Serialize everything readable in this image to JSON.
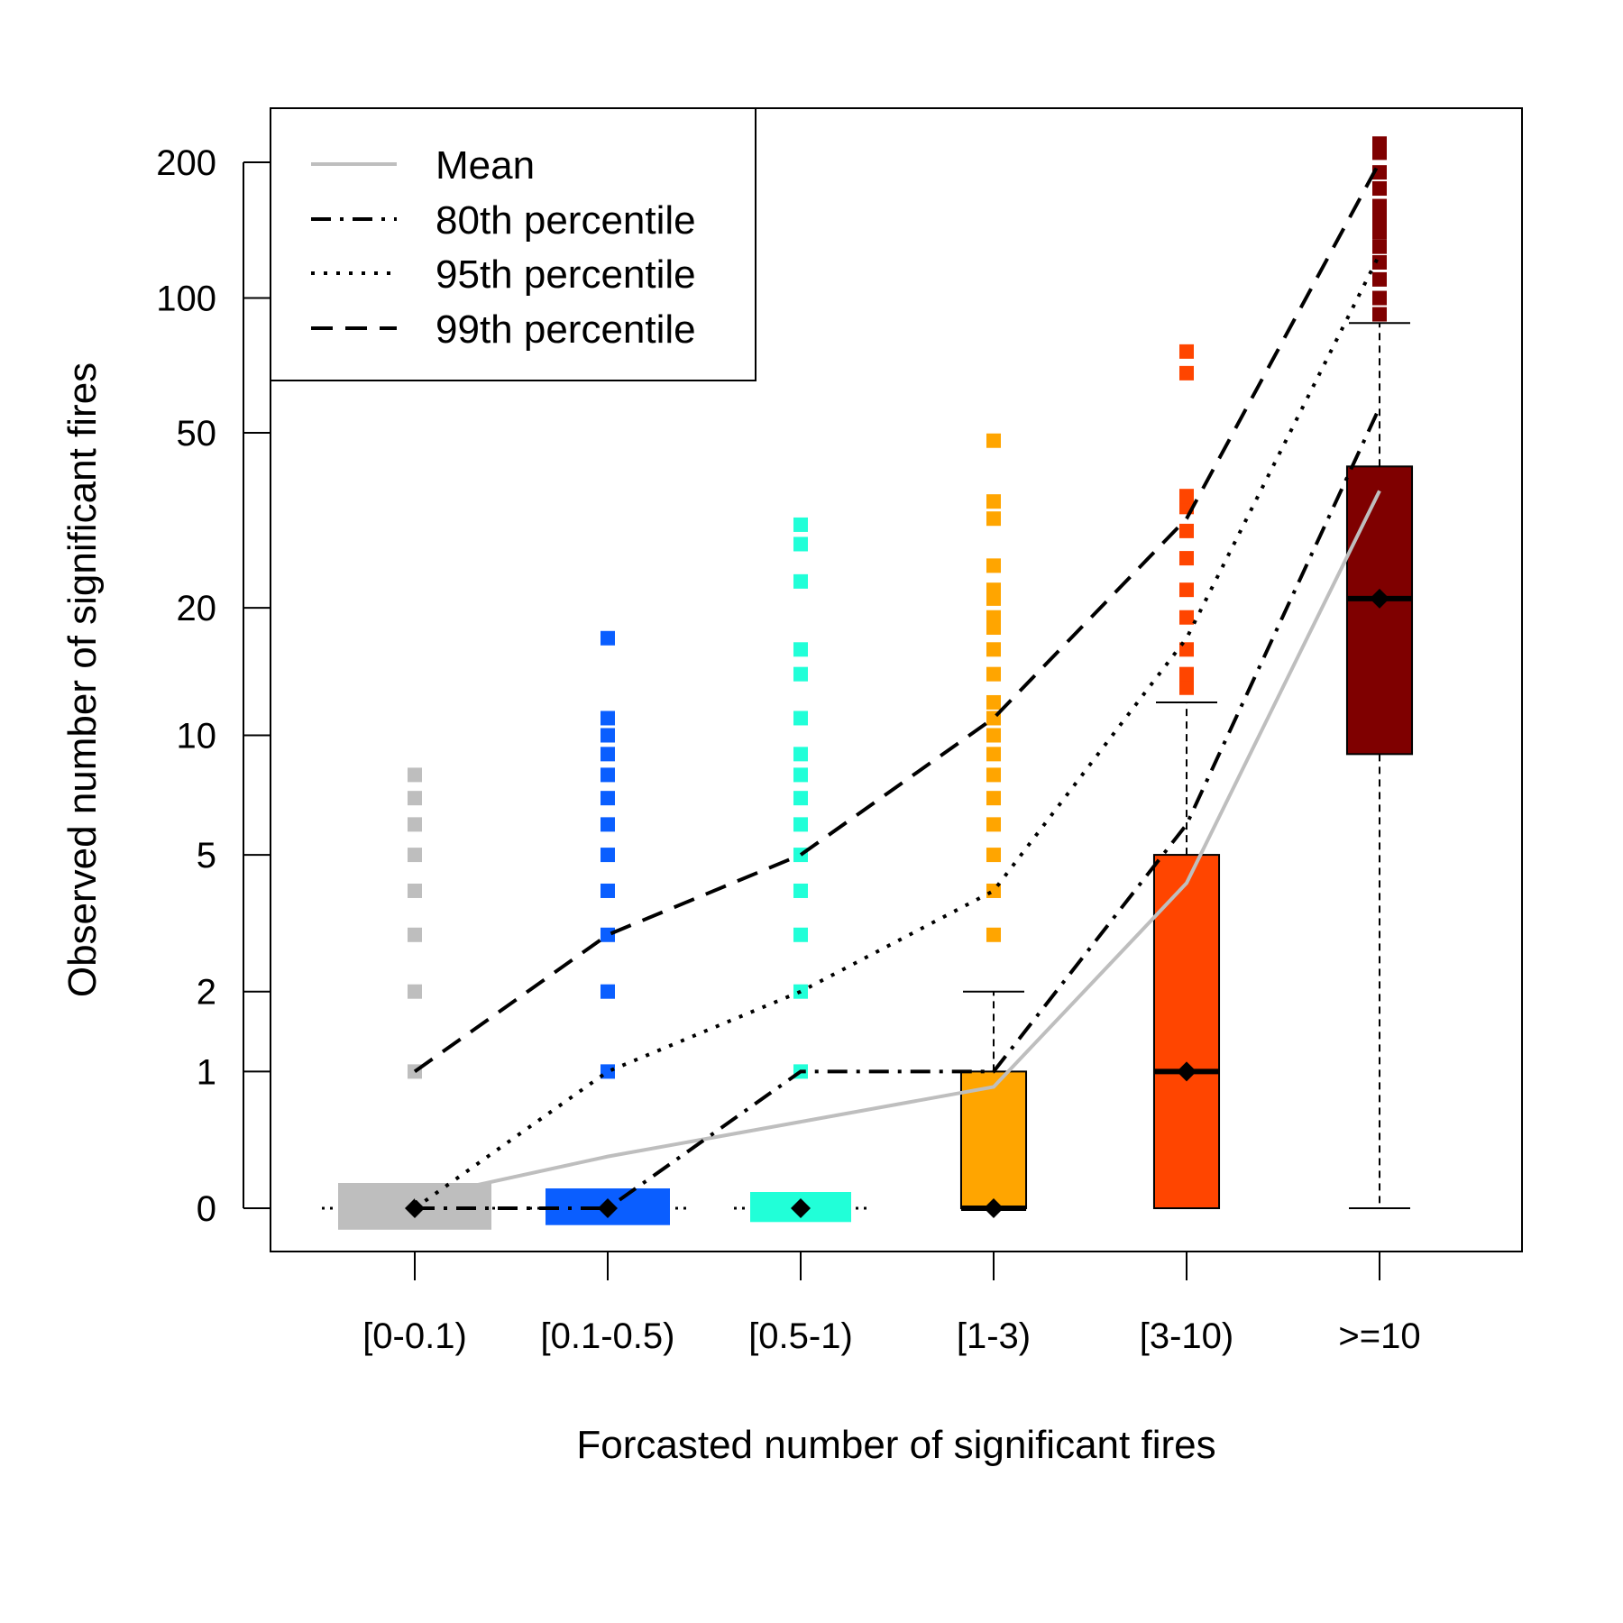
{
  "chart_data": {
    "type": "box",
    "xlabel": "Forcasted number of significant fires",
    "ylabel": "Observed number of significant fires",
    "y_scale": "log(y+1)",
    "ylim": [
      0,
      260
    ],
    "y_ticks": [
      0,
      1,
      2,
      5,
      10,
      20,
      50,
      100,
      200
    ],
    "categories": [
      "[0-0.1)",
      "[0.1-0.5)",
      "[0.5-1)",
      "[1-3)",
      "[3-10)",
      ">=10"
    ],
    "colors": [
      "#bebebe",
      "#0a5eff",
      "#21ffd8",
      "#ffa500",
      "#ff4500",
      "#7f0000"
    ],
    "boxes": [
      {
        "category": "[0-0.1)",
        "q1": 0,
        "median": 0,
        "q3": 0,
        "whisker_low": 0,
        "whisker_high": 0,
        "outliers": [
          1,
          2,
          3,
          4,
          5,
          6,
          7,
          8
        ]
      },
      {
        "category": "[0.1-0.5)",
        "q1": 0,
        "median": 0,
        "q3": 0,
        "whisker_low": 0,
        "whisker_high": 0,
        "outliers": [
          1,
          2,
          3,
          4,
          5,
          6,
          7,
          8,
          9,
          10,
          11,
          17
        ]
      },
      {
        "category": "[0.5-1)",
        "q1": 0,
        "median": 0,
        "q3": 0,
        "whisker_low": 0,
        "whisker_high": 0,
        "outliers": [
          1,
          2,
          3,
          4,
          5,
          6,
          7,
          8,
          9,
          11,
          14,
          16,
          23,
          28,
          31
        ]
      },
      {
        "category": "[1-3)",
        "q1": 0,
        "median": 0,
        "q3": 1,
        "whisker_low": 0,
        "whisker_high": 2,
        "outliers": [
          3,
          4,
          5,
          6,
          7,
          8,
          9,
          10,
          11,
          12,
          14,
          16,
          18,
          19,
          21,
          22,
          25,
          32,
          35,
          48
        ]
      },
      {
        "category": "[3-10)",
        "q1": 0,
        "median": 1,
        "q3": 5,
        "whisker_low": 0,
        "whisker_high": 12,
        "outliers": [
          13,
          14,
          16,
          19,
          22,
          26,
          30,
          34,
          36,
          68,
          76
        ]
      },
      {
        "category": ">=10",
        "q1": 9,
        "median": 21,
        "q3": 42,
        "whisker_low": 0,
        "whisker_high": 88,
        "outliers": [
          92,
          100,
          110,
          120,
          130,
          140,
          150,
          160,
          175,
          190,
          210,
          220
        ]
      }
    ],
    "series": [
      {
        "name": "Mean",
        "values": [
          0.05,
          0.3,
          0.55,
          0.85,
          4.2,
          37
        ]
      },
      {
        "name": "80th percentile",
        "values": [
          0,
          0,
          1,
          1,
          6,
          57
        ]
      },
      {
        "name": "95th percentile",
        "values": [
          0,
          1,
          2,
          4,
          17,
          125
        ]
      },
      {
        "name": "99th percentile",
        "values": [
          1,
          3,
          5,
          11,
          32,
          200
        ]
      }
    ],
    "legend_position": "top-left"
  }
}
